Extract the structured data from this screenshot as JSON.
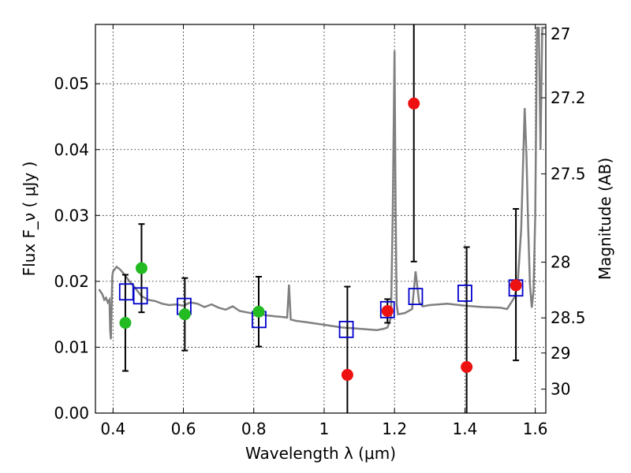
{
  "chart_data": {
    "type": "scatter",
    "xlabel": "Wavelength  λ (μm)",
    "ylabel": "Flux  F_ν  ( μJy )",
    "y2label": "Magnitude (AB)",
    "xlim": [
      0.35,
      1.63
    ],
    "ylim": [
      0.0,
      0.059
    ],
    "x_ticks": [
      0.4,
      0.6,
      0.8,
      1.0,
      1.2,
      1.4,
      1.6
    ],
    "x_tick_labels": [
      "0.4",
      "0.6",
      "0.8",
      "1",
      "1.2",
      "1.4",
      "1.6"
    ],
    "y_ticks": [
      0.0,
      0.01,
      0.02,
      0.03,
      0.04,
      0.05
    ],
    "y_tick_labels": [
      "0.00",
      "0.01",
      "0.02",
      "0.03",
      "0.04",
      "0.05"
    ],
    "mag_ticks": [
      27,
      27.2,
      27.5,
      28,
      28.5,
      29,
      30
    ],
    "mag_tick_labels": [
      "27",
      "27.2",
      "27.5",
      "28",
      "28.5",
      "29",
      "30"
    ],
    "grid": true,
    "colors": {
      "model": "#808080",
      "model_fluxes": "#0000cc",
      "detections": "#22bb22",
      "low_significance": "#ee1111",
      "errorbars": "#000000"
    },
    "series": [
      {
        "marker": "line",
        "x": [
          0.36,
          0.37,
          0.375,
          0.38,
          0.385,
          0.39,
          0.392,
          0.394,
          0.396,
          0.398,
          0.4,
          0.41,
          0.42,
          0.43,
          0.44,
          0.45,
          0.46,
          0.47,
          0.48,
          0.5,
          0.52,
          0.54,
          0.56,
          0.58,
          0.6,
          0.62,
          0.64,
          0.66,
          0.68,
          0.7,
          0.72,
          0.74,
          0.76,
          0.78,
          0.8,
          0.82,
          0.84,
          0.86,
          0.88,
          0.895,
          0.9,
          0.905,
          0.92,
          0.95,
          1.0,
          1.05,
          1.1,
          1.15,
          1.17,
          1.18,
          1.19,
          1.195,
          1.2,
          1.203,
          1.206,
          1.21,
          1.23,
          1.25,
          1.26,
          1.27,
          1.28,
          1.3,
          1.35,
          1.4,
          1.45,
          1.5,
          1.52,
          1.54,
          1.55,
          1.56,
          1.57,
          1.575,
          1.58,
          1.585,
          1.59,
          1.595,
          1.6,
          1.605,
          1.61,
          1.615,
          1.62,
          1.625,
          1.63
        ],
        "values": [
          0.0188,
          0.018,
          0.0172,
          0.0175,
          0.0168,
          0.0172,
          0.0125,
          0.0112,
          0.016,
          0.0208,
          0.0215,
          0.0222,
          0.0218,
          0.0212,
          0.0205,
          0.0198,
          0.0192,
          0.0185,
          0.0178,
          0.0172,
          0.017,
          0.0166,
          0.0164,
          0.0165,
          0.0163,
          0.0168,
          0.0166,
          0.0161,
          0.0165,
          0.016,
          0.0157,
          0.0162,
          0.0155,
          0.0153,
          0.0151,
          0.015,
          0.0148,
          0.0147,
          0.0146,
          0.0145,
          0.0195,
          0.0142,
          0.014,
          0.0138,
          0.0134,
          0.013,
          0.0128,
          0.0126,
          0.0128,
          0.013,
          0.0145,
          0.03,
          0.055,
          0.032,
          0.0165,
          0.015,
          0.0152,
          0.0158,
          0.0215,
          0.0168,
          0.0162,
          0.0164,
          0.0166,
          0.0163,
          0.0161,
          0.016,
          0.0158,
          0.0175,
          0.0195,
          0.028,
          0.0463,
          0.039,
          0.028,
          0.0195,
          0.016,
          0.0185,
          0.03,
          0.0585,
          0.0585,
          0.04,
          0.0585,
          0.0585,
          0.0585
        ]
      },
      {
        "marker": "open-square",
        "x": [
          0.438,
          0.478,
          0.602,
          0.815,
          1.063,
          1.18,
          1.26,
          1.4,
          1.545
        ],
        "values": [
          0.0184,
          0.0178,
          0.0162,
          0.0142,
          0.0127,
          0.0157,
          0.0177,
          0.0182,
          0.019
        ]
      },
      {
        "marker": "filled-circle",
        "x": [
          0.435,
          0.481,
          0.604,
          0.814
        ],
        "values": [
          0.0137,
          0.022,
          0.015,
          0.0154
        ],
        "err_low": [
          0.0073,
          0.0067,
          0.0055,
          0.0053
        ],
        "err_high": [
          0.0073,
          0.0067,
          0.0055,
          0.0053
        ]
      },
      {
        "marker": "filled-circle",
        "x": [
          1.066,
          1.18,
          1.255,
          1.405,
          1.545
        ],
        "values": [
          0.0058,
          0.0155,
          0.047,
          0.007,
          0.0194
        ],
        "err_low": [
          0.0058,
          0.0018,
          0.024,
          0.007,
          0.0114
        ],
        "err_high": [
          0.0134,
          0.0018,
          0.013,
          0.0182,
          0.0116
        ]
      }
    ]
  }
}
